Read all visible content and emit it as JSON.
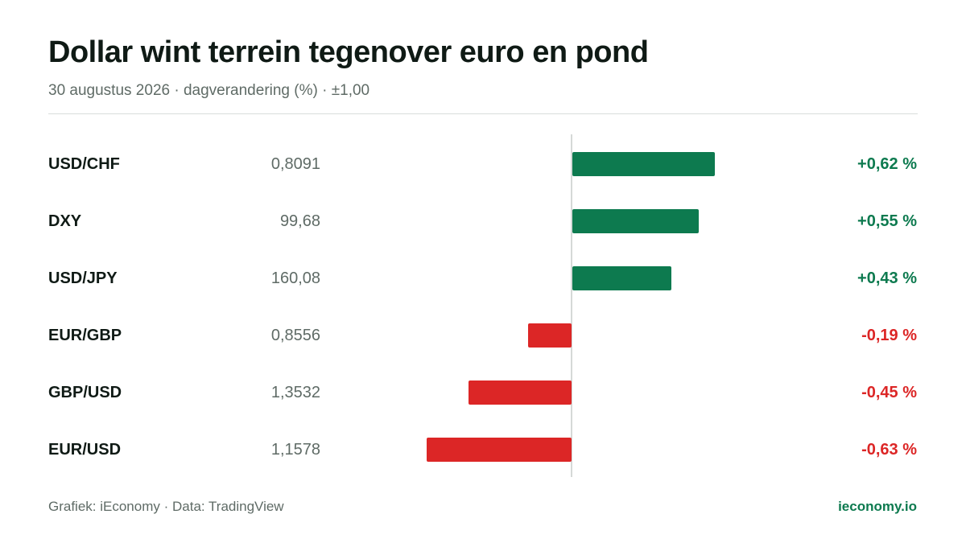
{
  "header": {
    "title": "Dollar wint terrein tegenover euro en pond",
    "subtitle": "30 augustus 2026 · dagverandering (%) · ±1,00"
  },
  "footer": {
    "source": "Grafiek: iEconomy · Data: TradingView",
    "brand": "ieconomy.io"
  },
  "colors": {
    "positive": "#0d7a4f",
    "negative": "#dc2626",
    "brand": "#0d7a4f"
  },
  "chart_data": {
    "type": "bar",
    "orientation": "horizontal",
    "categories": [
      "USD/CHF",
      "DXY",
      "USD/JPY",
      "EUR/GBP",
      "GBP/USD",
      "EUR/USD"
    ],
    "rates": [
      "0,8091",
      "99,68",
      "160,08",
      "0,8556",
      "1,3532",
      "1,1578"
    ],
    "values": [
      0.62,
      0.55,
      0.43,
      -0.19,
      -0.45,
      -0.63
    ],
    "value_labels": [
      "+0,62 %",
      "+0,55 %",
      "+0,43 %",
      "-0,19 %",
      "-0,45 %",
      "-0,63 %"
    ],
    "xlim": [
      -1,
      1
    ],
    "unit": "%",
    "grid": false
  }
}
